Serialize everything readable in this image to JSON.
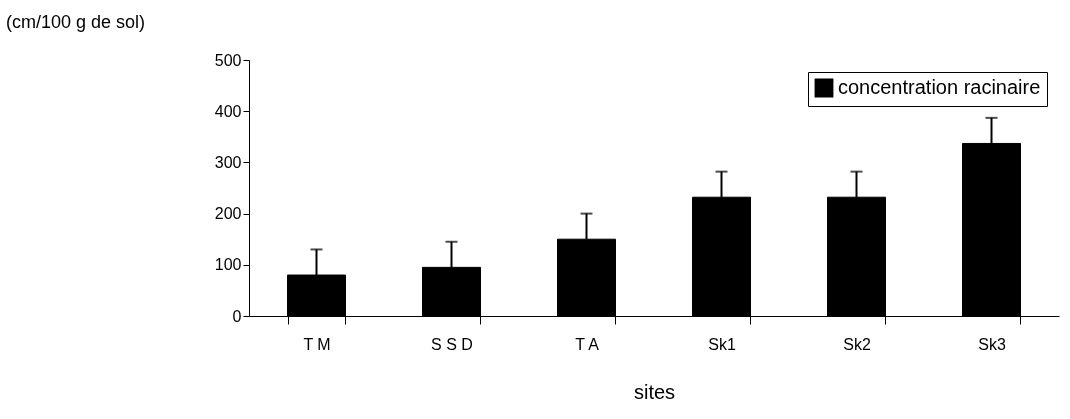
{
  "chart_data": {
    "type": "bar",
    "xlabel": "sites",
    "ylabel": "(cm/100 g de sol)",
    "categories": [
      "T M",
      "S S D",
      "T A",
      "Sk1",
      "Sk2",
      "Sk3"
    ],
    "series": [
      {
        "name": "concentration racinaire",
        "color": "#000000",
        "values": [
          80,
          95,
          150,
          232,
          232,
          337
        ],
        "errors": [
          [
            80,
            130
          ],
          [
            95,
            145
          ],
          [
            150,
            200
          ],
          [
            232,
            282
          ],
          [
            232,
            282
          ],
          [
            337,
            387
          ]
        ]
      }
    ],
    "ylim": [
      0,
      500
    ],
    "yticks": [
      0,
      100,
      200,
      300,
      400,
      500
    ],
    "grid": false,
    "legend": "top right"
  }
}
